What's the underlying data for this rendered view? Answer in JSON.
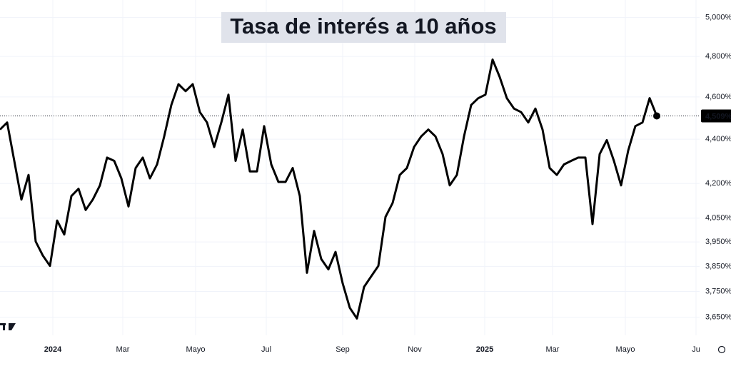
{
  "chart_data": {
    "type": "line",
    "title": "Tasa de interés a 10 años",
    "log_scale": true,
    "grid": true,
    "ylim": [
      3.581,
      5.093
    ],
    "yticks": [
      {
        "value": 5.0,
        "label": "5,000%"
      },
      {
        "value": 4.8,
        "label": "4,800%"
      },
      {
        "value": 4.6,
        "label": "4,600%"
      },
      {
        "value": 4.4,
        "label": "4,400%"
      },
      {
        "value": 4.2,
        "label": "4,200%"
      },
      {
        "value": 4.05,
        "label": "4,050%"
      },
      {
        "value": 3.95,
        "label": "3,950%"
      },
      {
        "value": 3.85,
        "label": "3,850%"
      },
      {
        "value": 3.75,
        "label": "3,750%"
      },
      {
        "value": 3.65,
        "label": "3,650%"
      }
    ],
    "xlim": [
      0,
      98
    ],
    "xticks": [
      {
        "value": 7.4,
        "label": "2024"
      },
      {
        "value": 17.2,
        "label": "Mar"
      },
      {
        "value": 27.4,
        "label": "Mayo"
      },
      {
        "value": 37.3,
        "label": "Jul"
      },
      {
        "value": 48,
        "label": "Sep"
      },
      {
        "value": 58.1,
        "label": "Nov"
      },
      {
        "value": 67.9,
        "label": "2025"
      },
      {
        "value": 77.4,
        "label": "Mar"
      },
      {
        "value": 87.6,
        "label": "Mayo"
      },
      {
        "value": 97.5,
        "label": "Ju"
      }
    ],
    "current_value": 4.509,
    "current_label": "4,509%",
    "series": [
      {
        "color": "#000000",
        "values": [
          4.445,
          4.478,
          4.301,
          4.13,
          4.238,
          3.952,
          3.894,
          3.852,
          4.04,
          3.981,
          4.145,
          4.177,
          4.085,
          4.13,
          4.192,
          4.316,
          4.301,
          4.223,
          4.1,
          4.269,
          4.316,
          4.223,
          4.285,
          4.413,
          4.561,
          4.662,
          4.628,
          4.662,
          4.527,
          4.478,
          4.364,
          4.478,
          4.611,
          4.301,
          4.445,
          4.254,
          4.254,
          4.461,
          4.285,
          4.207,
          4.207,
          4.269,
          4.145,
          3.824,
          3.996,
          3.88,
          3.838,
          3.909,
          3.782,
          3.686,
          3.645,
          3.768,
          3.81,
          3.852,
          4.055,
          4.115,
          4.238,
          4.269,
          4.364,
          4.413,
          4.445,
          4.413,
          4.332,
          4.192,
          4.238,
          4.413,
          4.561,
          4.594,
          4.611,
          4.784,
          4.697,
          4.594,
          4.544,
          4.527,
          4.478,
          4.544,
          4.445,
          4.269,
          4.238,
          4.285,
          4.301,
          4.316,
          4.316,
          4.025,
          4.332,
          4.396,
          4.301,
          4.192,
          4.348,
          4.461,
          4.478,
          4.594,
          4.509
        ]
      }
    ]
  }
}
